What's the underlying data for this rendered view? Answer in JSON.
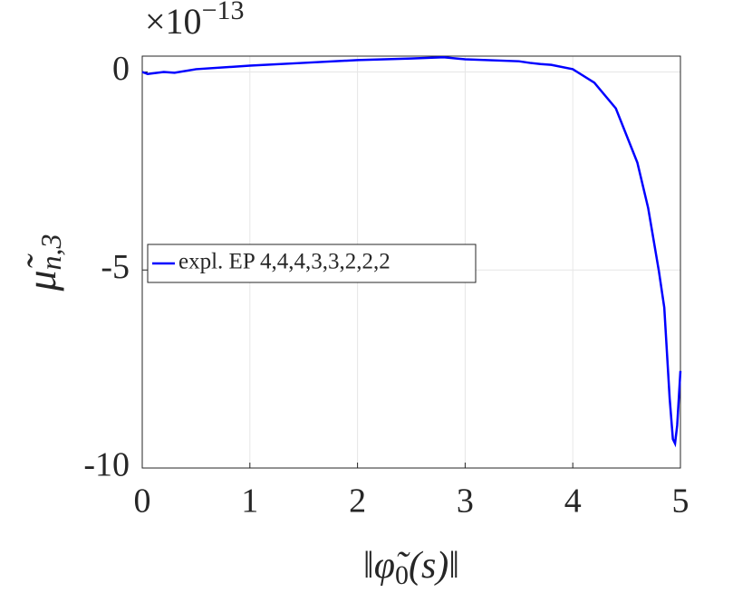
{
  "chart_data": {
    "type": "line",
    "multiplier": {
      "base": "×10",
      "exponent": "−13"
    },
    "xlabel": {
      "open": "‖",
      "symbol": "φ̃",
      "subscript": "0",
      "rest": "(s)",
      "close": "‖"
    },
    "ylabel": {
      "symbol": "μ̃",
      "subscript": "n,3"
    },
    "xlim": [
      0,
      5
    ],
    "ylim": [
      -10,
      0.4
    ],
    "xticks": [
      0,
      1,
      2,
      3,
      4,
      5
    ],
    "yticks": [
      -10,
      -5,
      0
    ],
    "grid": true,
    "legend_position": "west",
    "series": [
      {
        "name": "expl. EP 4,4,4,3,3,2,2,2",
        "color": "#0000ff",
        "x": [
          0,
          0.05,
          0.2,
          0.3,
          0.5,
          1.0,
          1.5,
          2.0,
          2.5,
          2.8,
          3.0,
          3.5,
          3.6,
          3.7,
          3.8,
          4.0,
          4.2,
          4.4,
          4.6,
          4.7,
          4.8,
          4.85,
          4.9,
          4.93,
          4.95,
          4.97,
          5.0
        ],
        "values": [
          0.0,
          -0.05,
          0.0,
          -0.02,
          0.07,
          0.16,
          0.23,
          0.3,
          0.34,
          0.37,
          0.32,
          0.27,
          0.23,
          0.2,
          0.18,
          0.07,
          -0.27,
          -0.92,
          -2.29,
          -3.43,
          -5.03,
          -5.95,
          -8.24,
          -9.27,
          -9.38,
          -8.92,
          -7.55
        ]
      }
    ]
  }
}
